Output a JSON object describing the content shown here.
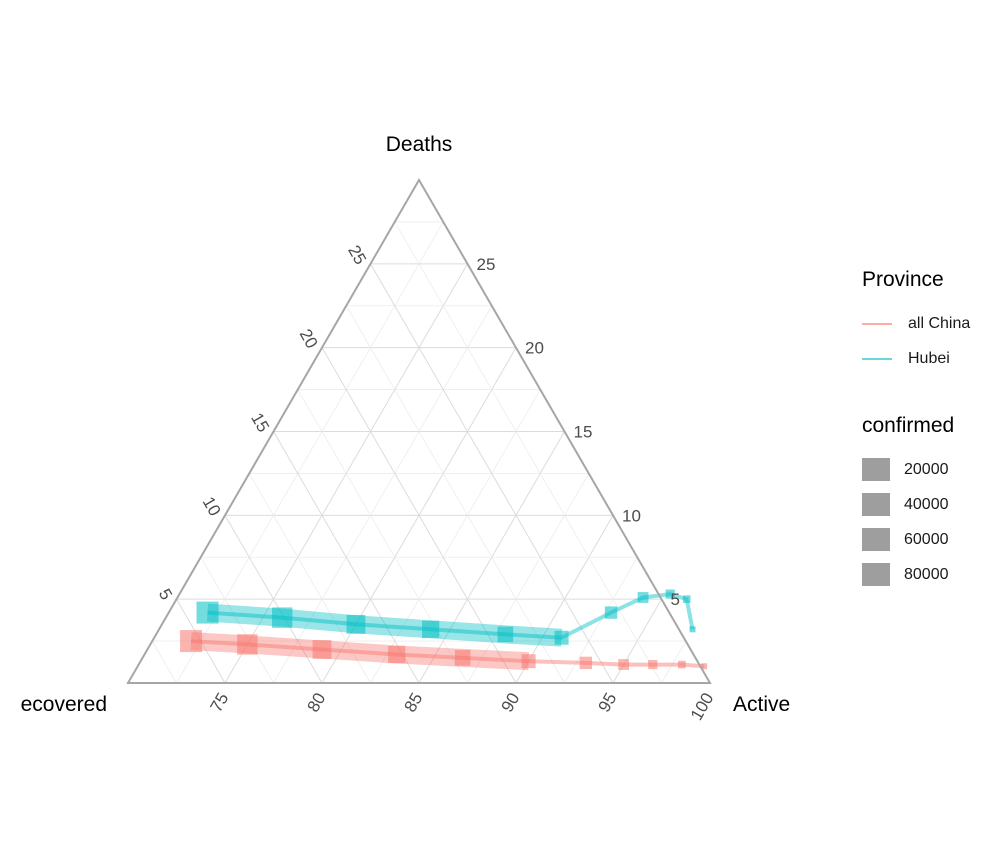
{
  "chart_data": {
    "type": "ternary",
    "axes": {
      "top": {
        "label": "Deaths",
        "ticks": [
          5,
          10,
          15,
          20,
          25
        ]
      },
      "left": {
        "label": "Recovered",
        "visible_text": "ecovered",
        "ticks": [
          75,
          80,
          85,
          90,
          95,
          100
        ]
      },
      "right": {
        "label": "Active",
        "ticks": [
          5,
          10,
          15,
          20,
          25
        ]
      }
    },
    "grid": true,
    "legend_position": "right",
    "legends": {
      "color": {
        "title": "Province",
        "entries": [
          {
            "name": "all China",
            "color": "#F8766D"
          },
          {
            "name": "Hubei",
            "color": "#00BFC4"
          }
        ]
      },
      "size": {
        "title": "confirmed",
        "entries": [
          "20000",
          "40000",
          "60000",
          "80000"
        ]
      }
    },
    "series": [
      {
        "name": "all China",
        "color": "#F8766D",
        "points": [
          {
            "active": 99.2,
            "deaths": 1.0
          },
          {
            "active": 98.0,
            "deaths": 1.1
          },
          {
            "active": 96.5,
            "deaths": 1.1
          },
          {
            "active": 95.0,
            "deaths": 1.1
          },
          {
            "active": 93.0,
            "deaths": 1.2
          },
          {
            "active": 90.0,
            "deaths": 1.3
          },
          {
            "active": 86.5,
            "deaths": 1.5
          },
          {
            "active": 83.0,
            "deaths": 1.7
          },
          {
            "active": 79.0,
            "deaths": 2.0
          },
          {
            "active": 75.0,
            "deaths": 2.3
          },
          {
            "active": 72.0,
            "deaths": 2.5
          }
        ]
      },
      {
        "name": "Hubei",
        "color": "#00BFC4",
        "points": [
          {
            "active": 97.5,
            "deaths": 3.2
          },
          {
            "active": 96.3,
            "deaths": 5.0
          },
          {
            "active": 95.3,
            "deaths": 5.3
          },
          {
            "active": 94.0,
            "deaths": 5.1
          },
          {
            "active": 92.8,
            "deaths": 4.2
          },
          {
            "active": 91.0,
            "deaths": 2.7
          },
          {
            "active": 88.0,
            "deaths": 2.9
          },
          {
            "active": 84.0,
            "deaths": 3.2
          },
          {
            "active": 80.0,
            "deaths": 3.5
          },
          {
            "active": 76.0,
            "deaths": 3.9
          },
          {
            "active": 72.0,
            "deaths": 4.2
          }
        ]
      }
    ]
  }
}
